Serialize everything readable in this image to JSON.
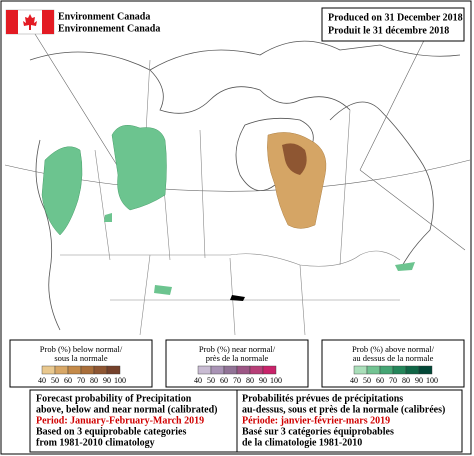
{
  "header": {
    "agency_en": "Environment Canada",
    "agency_fr": "Environnement Canada",
    "produced_en": "Produced on 31 December 2018",
    "produced_fr": "Produit le 31 décembre 2018"
  },
  "legends": [
    {
      "label_en": "Prob (%) below normal/",
      "label_fr": "sous la normale",
      "scale": [
        40,
        50,
        60,
        70,
        80,
        90,
        100
      ],
      "colors": [
        "#e9c88e",
        "#d8a766",
        "#c48a49",
        "#a96e3a",
        "#8e5632",
        "#75412b"
      ]
    },
    {
      "label_en": "Prob (%) near normal/",
      "label_fr": "près de la normale",
      "scale": [
        40,
        50,
        60,
        70,
        80,
        90,
        100
      ],
      "colors": [
        "#c9bcd3",
        "#a993b5",
        "#917396",
        "#9c5685",
        "#b73e77",
        "#c9236a"
      ]
    },
    {
      "label_en": "Prob (%) above normal/",
      "label_fr": "au dessus de la normale",
      "scale": [
        40,
        50,
        60,
        70,
        80,
        90,
        100
      ],
      "colors": [
        "#a9deb9",
        "#72c392",
        "#45a574",
        "#24865a",
        "#106646",
        "#034838"
      ]
    }
  ],
  "footer": {
    "en": [
      "Forecast probability of Precipitation",
      "above, below and near normal (calibrated)",
      "Period: January-February-March 2019",
      "Based on 3 equiprobable categories",
      "from 1981-2010 climatology"
    ],
    "fr": [
      "Probabilités prévues de précipitations",
      "au-dessus, sous et près de la normale (calibrées)",
      "Période: janvier-février-mars 2019",
      "Basé sur 3 catégories équiprobables",
      "de la climatologie 1981-2010"
    ]
  }
}
